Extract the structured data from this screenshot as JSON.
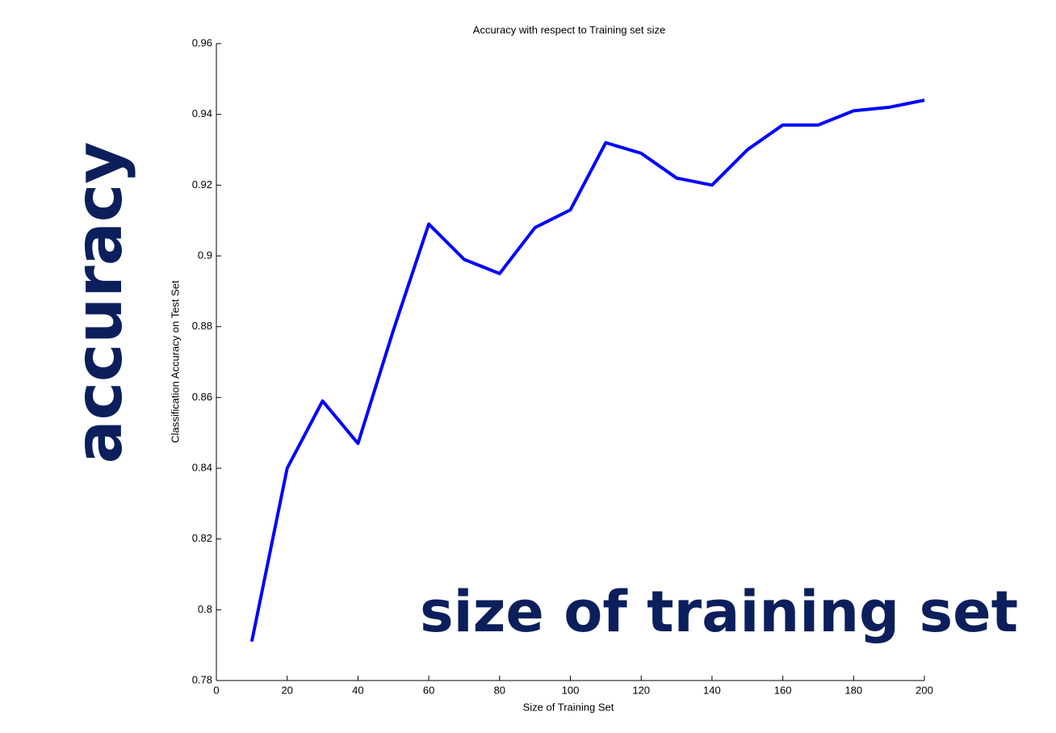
{
  "chart_data": {
    "type": "line",
    "title": "Accuracy with respect to Training set size",
    "x_label": "Size of Training Set",
    "y_label": "Classification Accuracy on Test Set",
    "annotations": [
      "accuracy",
      "size of training set"
    ],
    "x": [
      10,
      20,
      30,
      40,
      50,
      60,
      70,
      80,
      90,
      100,
      110,
      120,
      130,
      140,
      150,
      160,
      170,
      180,
      190,
      200
    ],
    "values": [
      0.791,
      0.84,
      0.859,
      0.847,
      0.879,
      0.909,
      0.899,
      0.895,
      0.908,
      0.913,
      0.932,
      0.929,
      0.922,
      0.92,
      0.93,
      0.937,
      0.937,
      0.941,
      0.942,
      0.944
    ],
    "color": "#0000ff",
    "xlim": [
      0,
      200
    ],
    "xticks": [
      0,
      20,
      40,
      60,
      80,
      100,
      120,
      140,
      160,
      180,
      200
    ],
    "ylim": [
      0.78,
      0.96
    ],
    "yticks": [
      0.78,
      0.8,
      0.82,
      0.84,
      0.86,
      0.88,
      0.9,
      0.92,
      0.94,
      0.96
    ],
    "grid": false
  }
}
